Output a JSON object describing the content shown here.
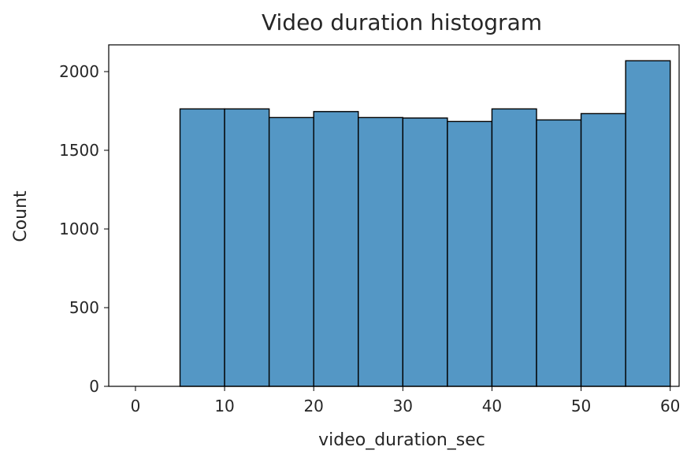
{
  "chart_data": {
    "type": "bar",
    "title": "Video duration histogram",
    "xlabel": "video_duration_sec",
    "ylabel": "Count",
    "xlim": [
      -3,
      61
    ],
    "ylim": [
      0,
      2170
    ],
    "x_ticks": [
      0,
      10,
      20,
      30,
      40,
      50,
      60
    ],
    "y_ticks": [
      0,
      500,
      1000,
      1500,
      2000
    ],
    "bins": [
      {
        "start": 5,
        "end": 10,
        "count": 1763
      },
      {
        "start": 10,
        "end": 15,
        "count": 1763
      },
      {
        "start": 15,
        "end": 20,
        "count": 1708
      },
      {
        "start": 20,
        "end": 25,
        "count": 1746
      },
      {
        "start": 25,
        "end": 30,
        "count": 1708
      },
      {
        "start": 30,
        "end": 35,
        "count": 1705
      },
      {
        "start": 35,
        "end": 40,
        "count": 1683
      },
      {
        "start": 40,
        "end": 45,
        "count": 1763
      },
      {
        "start": 45,
        "end": 50,
        "count": 1693
      },
      {
        "start": 50,
        "end": 55,
        "count": 1733
      },
      {
        "start": 55,
        "end": 60,
        "count": 2069
      }
    ],
    "bar_color": "#5497c5",
    "edge_color": "#000000",
    "grid": false,
    "legend": "none"
  }
}
